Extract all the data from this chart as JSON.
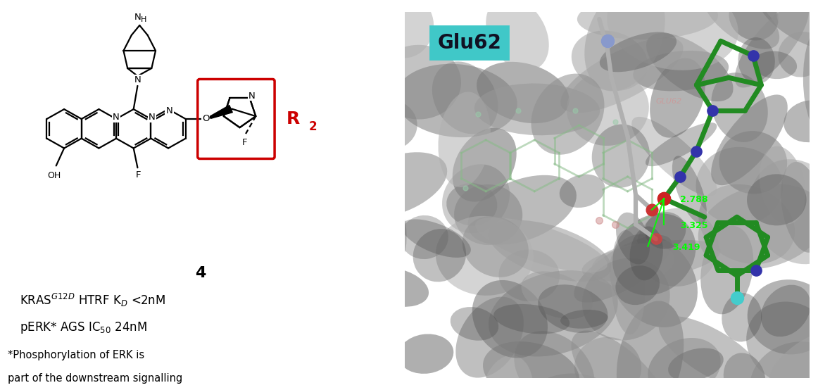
{
  "compound_number": "4",
  "r2_label": "R",
  "r2_color": "#CC0000",
  "box_color": "#CC0000",
  "glu62_label": "Glu62",
  "glu62_bg": "#40C8C8",
  "glu62_text": "#111122",
  "distance_color": "#00FF00",
  "distances": [
    "2.788",
    "3.325",
    "3.419"
  ],
  "structure_color": "#000000",
  "mol_green": "#228B22",
  "bg_gray": "#808080",
  "footnote_line1": "*Phosphorylation of ERK is",
  "footnote_line2": "part of the downstream signalling"
}
